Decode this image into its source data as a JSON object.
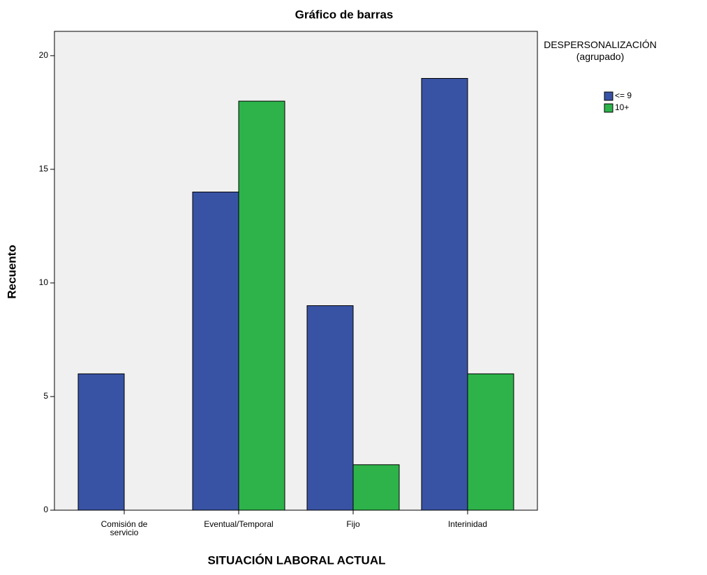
{
  "chart_data": {
    "type": "bar",
    "title": "Gráfico de barras",
    "x_label": "SITUACIÓN LABORAL ACTUAL",
    "y_label": "Recuento",
    "legend_title": "DESPERSONALIZACIÓN (agrupado)",
    "categories": [
      "Comisión de servicio",
      "Eventual/Temporal",
      "Fijo",
      "Interinidad"
    ],
    "series": [
      {
        "name": "<= 9",
        "color": "#3953a4",
        "values": [
          6,
          14,
          9,
          19
        ]
      },
      {
        "name": "10+",
        "color": "#2db34a",
        "values": [
          null,
          18,
          2,
          6
        ]
      }
    ],
    "ylim": [
      0,
      21.07
    ],
    "yticks": [
      0,
      5,
      10,
      15,
      20
    ],
    "grid": false,
    "legend": "right"
  }
}
